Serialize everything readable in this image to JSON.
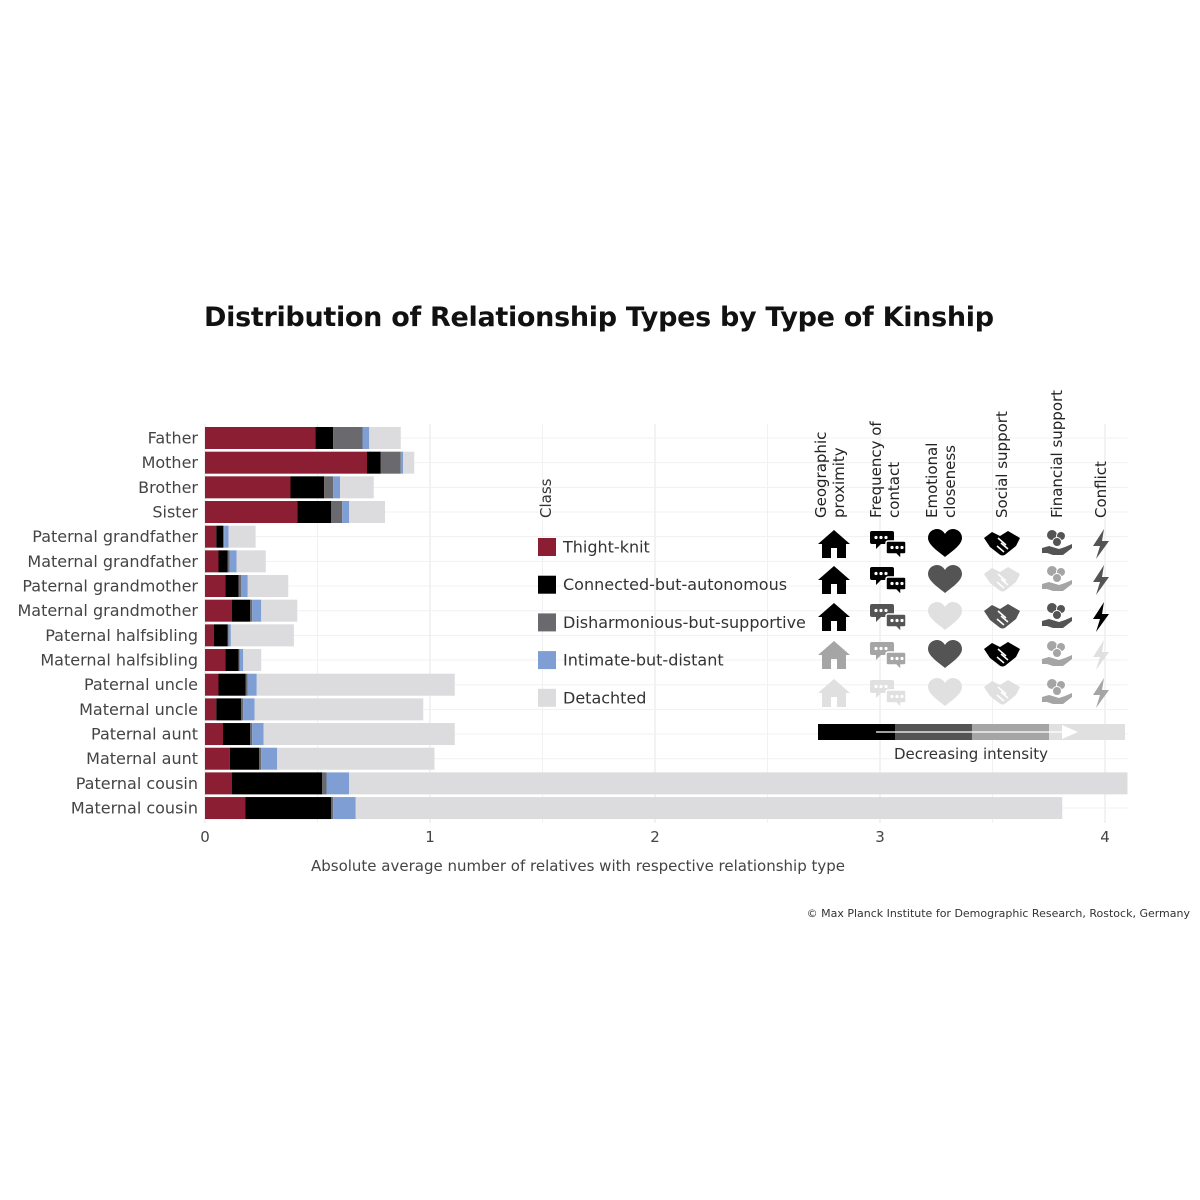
{
  "title": "Distribution of Relationship Types by Type of Kinship",
  "credit": "© Max Planck Institute for Demographic Research, Rostock, Germany",
  "chart_data": {
    "type": "bar",
    "orientation": "horizontal",
    "stacked": true,
    "title": "Distribution of Relationship Types by Type of Kinship",
    "xlabel": "Absolute average number of relatives with respective relationship type",
    "ylabel": "",
    "xlim": [
      0,
      4.1
    ],
    "xticks": [
      0,
      1,
      2,
      3,
      4
    ],
    "grid": true,
    "legend_title": "Class",
    "legend_position": "right",
    "categories": [
      "Father",
      "Mother",
      "Brother",
      "Sister",
      "Paternal grandfather",
      "Maternal grandfather",
      "Paternal grandmother",
      "Maternal grandmother",
      "Paternal halfsibling",
      "Maternal halfsibling",
      "Paternal uncle",
      "Maternal uncle",
      "Paternal aunt",
      "Maternal aunt",
      "Paternal cousin",
      "Maternal cousin"
    ],
    "series": [
      {
        "name": "Thight-knit",
        "color": "#8b1e33",
        "values": [
          0.49,
          0.72,
          0.38,
          0.41,
          0.05,
          0.06,
          0.09,
          0.12,
          0.04,
          0.09,
          0.06,
          0.05,
          0.08,
          0.11,
          0.12,
          0.18
        ]
      },
      {
        "name": "Connected-but-autonomous",
        "color": "#000000",
        "values": [
          0.08,
          0.06,
          0.15,
          0.15,
          0.03,
          0.04,
          0.06,
          0.08,
          0.06,
          0.06,
          0.12,
          0.11,
          0.12,
          0.13,
          0.4,
          0.38
        ]
      },
      {
        "name": "Disharmonious-but-supportive",
        "color": "#6a6a6e",
        "values": [
          0.13,
          0.09,
          0.04,
          0.05,
          0.005,
          0.01,
          0.01,
          0.01,
          0.005,
          0.005,
          0.01,
          0.01,
          0.01,
          0.01,
          0.02,
          0.01
        ]
      },
      {
        "name": "Intimate-but-distant",
        "color": "#7f9fd4",
        "values": [
          0.03,
          0.01,
          0.03,
          0.03,
          0.02,
          0.03,
          0.03,
          0.04,
          0.01,
          0.015,
          0.04,
          0.05,
          0.05,
          0.07,
          0.1,
          0.1
        ]
      },
      {
        "name": "Detachted",
        "color": "#dcdcde",
        "values": [
          0.14,
          0.05,
          0.15,
          0.16,
          0.12,
          0.13,
          0.18,
          0.16,
          0.28,
          0.08,
          0.88,
          0.75,
          0.85,
          0.7,
          3.46,
          3.14
        ]
      }
    ]
  },
  "dimensions": {
    "headers": [
      "Geographic\nproximity",
      "Frequency of\ncontact",
      "Emotional\ncloseness",
      "Social support",
      "Financial support",
      "Conflict"
    ],
    "icons": [
      "house-icon",
      "chat-bubbles-icon",
      "heart-icon",
      "handshake-icon",
      "coins-hand-icon",
      "lightning-icon"
    ],
    "intensity_colors": [
      "#000000",
      "#545454",
      "#a5a5a5",
      "#e0e0e0"
    ],
    "matrix": [
      [
        0,
        0,
        0,
        0,
        1,
        1
      ],
      [
        0,
        0,
        1,
        3,
        2,
        1
      ],
      [
        0,
        1,
        3,
        1,
        1,
        0
      ],
      [
        2,
        2,
        1,
        0,
        2,
        3
      ],
      [
        3,
        3,
        3,
        3,
        2,
        2
      ]
    ],
    "scale_label": "Decreasing intensity"
  }
}
